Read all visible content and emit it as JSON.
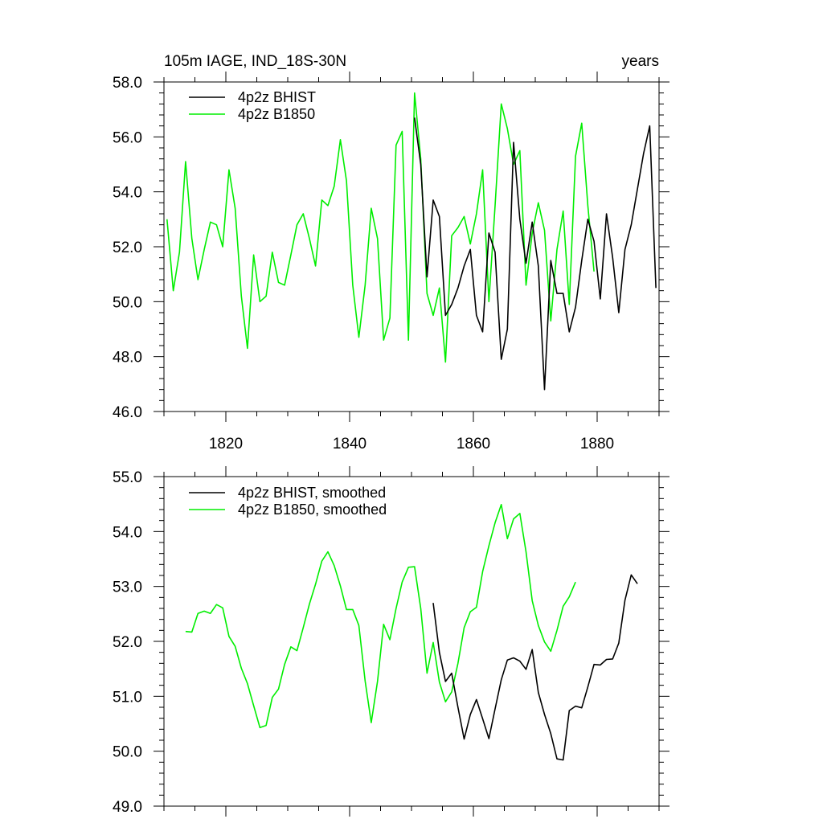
{
  "header": {
    "left_title": "105m IAGE, IND_18S-30N",
    "right_title": "years"
  },
  "colors": {
    "bhist": "#000000",
    "b1850": "#00ee00",
    "axis": "#000000"
  },
  "chart_data": [
    {
      "type": "line",
      "title": "",
      "xlabel": "",
      "ylabel": "",
      "xlim": [
        1810,
        1890
      ],
      "ylim": [
        46.0,
        58.0
      ],
      "x_ticks": [
        1820,
        1840,
        1860,
        1880
      ],
      "x_tick_labels": [
        "1820",
        "1840",
        "1860",
        "1880"
      ],
      "y_ticks": [
        46.0,
        48.0,
        50.0,
        52.0,
        54.0,
        56.0,
        58.0
      ],
      "y_tick_labels": [
        "46.0",
        "48.0",
        "50.0",
        "52.0",
        "54.0",
        "56.0",
        "58.0"
      ],
      "grid": false,
      "legend_position": "top-left",
      "series": [
        {
          "name": "4p2z BHIST",
          "color": "#000000",
          "x": [
            1850.5,
            1851.5,
            1852.5,
            1853.5,
            1854.5,
            1855.5,
            1856.5,
            1857.5,
            1858.5,
            1859.5,
            1860.5,
            1861.5,
            1862.5,
            1863.5,
            1864.5,
            1865.5,
            1866.5,
            1867.5,
            1868.5,
            1869.5,
            1870.5,
            1871.5,
            1872.5,
            1873.5,
            1874.5,
            1875.5,
            1876.5,
            1877.5,
            1878.5,
            1879.5,
            1880.5,
            1881.5,
            1882.5,
            1883.5,
            1884.5,
            1885.5,
            1886.5,
            1887.5,
            1888.5,
            1889.5
          ],
          "y": [
            56.7,
            55.0,
            50.9,
            53.7,
            53.1,
            49.5,
            49.9,
            50.5,
            51.3,
            51.9,
            49.5,
            48.9,
            52.5,
            51.8,
            47.9,
            49.0,
            55.8,
            53.0,
            51.4,
            52.9,
            51.3,
            46.8,
            51.5,
            50.3,
            50.3,
            48.9,
            49.8,
            51.5,
            53.0,
            52.2,
            50.1,
            53.2,
            51.6,
            49.6,
            51.9,
            52.8,
            54.1,
            55.4,
            56.4,
            50.5
          ]
        },
        {
          "name": "4p2z B1850",
          "color": "#00ee00",
          "x": [
            1810.5,
            1811.5,
            1812.5,
            1813.5,
            1814.5,
            1815.5,
            1816.5,
            1817.5,
            1818.5,
            1819.5,
            1820.5,
            1821.5,
            1822.5,
            1823.5,
            1824.5,
            1825.5,
            1826.5,
            1827.5,
            1828.5,
            1829.5,
            1830.5,
            1831.5,
            1832.5,
            1833.5,
            1834.5,
            1835.5,
            1836.5,
            1837.5,
            1838.5,
            1839.5,
            1840.5,
            1841.5,
            1842.5,
            1843.5,
            1844.5,
            1845.5,
            1846.5,
            1847.5,
            1848.5,
            1849.5,
            1850.5,
            1851.5,
            1852.5,
            1853.5,
            1854.5,
            1855.5,
            1856.5,
            1857.5,
            1858.5,
            1859.5,
            1860.5,
            1861.5,
            1862.5,
            1863.5,
            1864.5,
            1865.5,
            1866.5,
            1867.5,
            1868.5,
            1869.5,
            1870.5,
            1871.5,
            1872.5,
            1873.5,
            1874.5,
            1875.5,
            1876.5,
            1877.5,
            1878.5,
            1879.5
          ],
          "y": [
            53.0,
            50.4,
            51.8,
            55.1,
            52.3,
            50.8,
            51.9,
            52.9,
            52.8,
            52.0,
            54.8,
            53.4,
            50.2,
            48.3,
            51.7,
            50.0,
            50.2,
            51.8,
            50.7,
            50.6,
            51.7,
            52.8,
            53.2,
            52.3,
            51.3,
            53.7,
            53.5,
            54.2,
            55.9,
            54.4,
            50.6,
            48.7,
            50.6,
            53.4,
            52.3,
            48.6,
            49.4,
            55.7,
            56.2,
            48.6,
            57.6,
            55.2,
            50.3,
            49.5,
            50.5,
            47.8,
            52.4,
            52.7,
            53.1,
            52.1,
            53.2,
            54.8,
            50.0,
            53.5,
            57.2,
            56.3,
            55.0,
            55.5,
            50.6,
            52.5,
            53.6,
            52.6,
            49.3,
            51.9,
            53.3,
            49.9,
            55.3,
            56.5,
            53.5,
            51.1
          ]
        }
      ]
    },
    {
      "type": "line",
      "title": "",
      "xlabel": "",
      "ylabel": "",
      "xlim": [
        1810,
        1890
      ],
      "ylim": [
        49.0,
        55.0
      ],
      "x_ticks": [
        1820,
        1840,
        1860,
        1880
      ],
      "y_ticks": [
        49.0,
        50.0,
        51.0,
        52.0,
        53.0,
        54.0,
        55.0
      ],
      "y_tick_labels": [
        "49.0",
        "50.0",
        "51.0",
        "52.0",
        "53.0",
        "54.0",
        "55.0"
      ],
      "grid": false,
      "legend_position": "top-left",
      "series": [
        {
          "name": "4p2z BHIST, smoothed",
          "color": "#000000",
          "x": [
            1853.5,
            1854.5,
            1855.5,
            1856.5,
            1857.5,
            1858.5,
            1859.5,
            1860.5,
            1861.5,
            1862.5,
            1863.5,
            1864.5,
            1865.5,
            1866.5,
            1867.5,
            1868.5,
            1869.5,
            1870.5,
            1871.5,
            1872.5,
            1873.5,
            1874.5,
            1875.5,
            1876.5,
            1877.5,
            1878.5,
            1879.5,
            1880.5,
            1881.5,
            1882.5,
            1883.5,
            1884.5,
            1885.5,
            1886.5
          ],
          "y": [
            52.7,
            51.8,
            51.27,
            51.42,
            50.8,
            50.22,
            50.67,
            50.94,
            50.59,
            50.23,
            50.77,
            51.3,
            51.66,
            51.7,
            51.64,
            51.49,
            51.85,
            51.07,
            50.67,
            50.32,
            49.86,
            49.84,
            50.74,
            50.82,
            50.79,
            51.17,
            51.58,
            51.57,
            51.67,
            51.68,
            51.97,
            52.75,
            53.21,
            53.05
          ]
        },
        {
          "name": "4p2z B1850, smoothed",
          "color": "#00ee00",
          "x": [
            1813.5,
            1814.5,
            1815.5,
            1816.5,
            1817.5,
            1818.5,
            1819.5,
            1820.5,
            1821.5,
            1822.5,
            1823.5,
            1824.5,
            1825.5,
            1826.5,
            1827.5,
            1828.5,
            1829.5,
            1830.5,
            1831.5,
            1832.5,
            1833.5,
            1834.5,
            1835.5,
            1836.5,
            1837.5,
            1838.5,
            1839.5,
            1840.5,
            1841.5,
            1842.5,
            1843.5,
            1844.5,
            1845.5,
            1846.5,
            1847.5,
            1848.5,
            1849.5,
            1850.5,
            1851.5,
            1852.5,
            1853.5,
            1854.5,
            1855.5,
            1856.5,
            1857.5,
            1858.5,
            1859.5,
            1860.5,
            1861.5,
            1862.5,
            1863.5,
            1864.5,
            1865.5,
            1866.5,
            1867.5,
            1868.5,
            1869.5,
            1870.5,
            1871.5,
            1872.5,
            1873.5,
            1874.5,
            1875.5,
            1876.5
          ],
          "y": [
            52.18,
            52.17,
            52.51,
            52.55,
            52.51,
            52.67,
            52.61,
            52.09,
            51.91,
            51.51,
            51.23,
            50.83,
            50.43,
            50.47,
            50.98,
            51.13,
            51.58,
            51.9,
            51.83,
            52.25,
            52.68,
            53.04,
            53.46,
            53.63,
            53.38,
            53.01,
            52.58,
            52.58,
            52.29,
            51.28,
            50.52,
            51.27,
            52.31,
            52.03,
            52.6,
            53.08,
            53.35,
            53.36,
            52.6,
            51.42,
            51.98,
            51.26,
            50.9,
            51.08,
            51.6,
            52.25,
            52.54,
            52.62,
            53.27,
            53.74,
            54.16,
            54.49,
            53.87,
            54.23,
            54.33,
            53.63,
            52.74,
            52.29,
            51.99,
            51.82,
            52.2,
            52.64,
            52.81,
            53.08
          ]
        }
      ]
    }
  ]
}
